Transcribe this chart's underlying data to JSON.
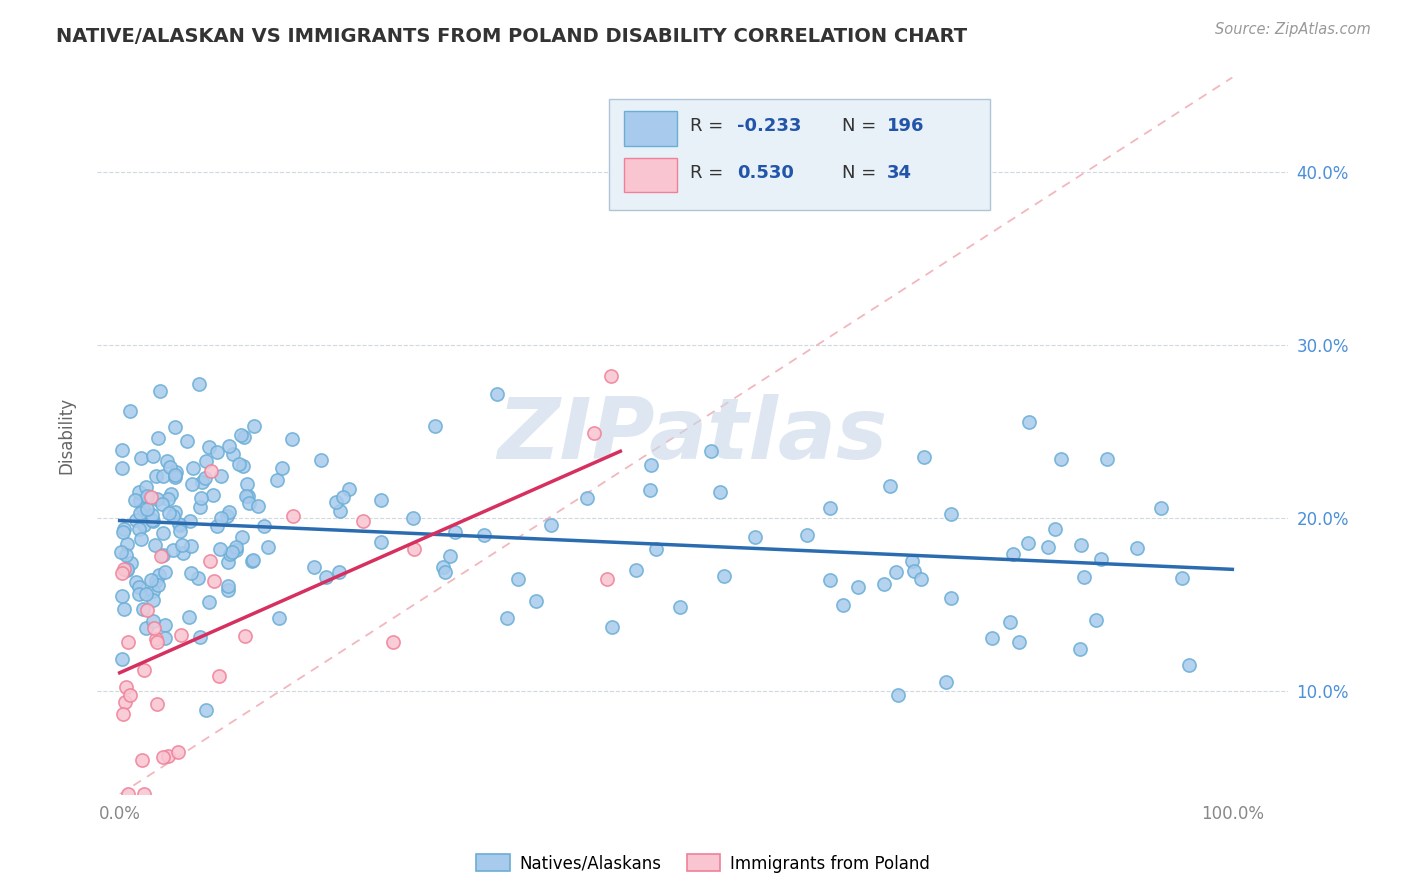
{
  "title": "NATIVE/ALASKAN VS IMMIGRANTS FROM POLAND DISABILITY CORRELATION CHART",
  "source": "Source: ZipAtlas.com",
  "ylabel": "Disability",
  "xlim": [
    -0.02,
    1.05
  ],
  "ylim": [
    0.04,
    0.455
  ],
  "yticks": [
    0.1,
    0.2,
    0.3,
    0.4
  ],
  "ytick_labels": [
    "10.0%",
    "20.0%",
    "30.0%",
    "40.0%"
  ],
  "xticks": [
    0.0,
    1.0
  ],
  "xtick_labels": [
    "0.0%",
    "100.0%"
  ],
  "blue_color": "#a8caec",
  "blue_edge_color": "#6aaed6",
  "pink_color": "#f9c5d1",
  "pink_edge_color": "#f08098",
  "blue_line_color": "#2b6cb0",
  "pink_line_color": "#d63060",
  "diagonal_color": "#f0b0b8",
  "background_color": "#ffffff",
  "watermark": "ZIPatlas",
  "watermark_color": "#c8d8e8",
  "right_tick_color": "#4a90d9",
  "grid_color": "#d0d8e0",
  "title_color": "#333333",
  "source_color": "#999999",
  "ylabel_color": "#666666",
  "xtick_color": "#888888",
  "legend_box_color": "#e8f0f8",
  "legend_box_edge": "#b0c4d8",
  "legend_r_color": "#333333",
  "legend_val_color": "#2255aa"
}
